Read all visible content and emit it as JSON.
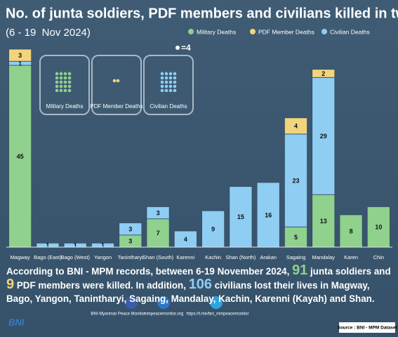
{
  "header": {
    "title": "No. of junta soldiers, PDF members and civilians killed in two weeks",
    "subtitle": "(6 - 19  Nov 2024)"
  },
  "chart_data": {
    "type": "stacked-bar",
    "categories": [
      "Magway",
      "Bago (East)",
      "Bago (West)",
      "Yangon",
      "Tanintharyi",
      "Shan (South)",
      "Karenni",
      "Kachin",
      "Shan (North)",
      "Arakan",
      "Sagaing",
      "Mandalay",
      "Karen",
      "Chin"
    ],
    "series": [
      {
        "name": "Military Deaths",
        "color": "#8fd18d",
        "values": [
          45,
          0,
          0,
          0,
          3,
          7,
          0,
          0,
          0,
          0,
          5,
          13,
          8,
          10
        ]
      },
      {
        "name": "PDF Member Deaths",
        "color": "#f2d47c",
        "values": [
          3,
          0,
          0,
          0,
          0,
          0,
          0,
          0,
          0,
          0,
          4,
          2,
          0,
          0
        ]
      },
      {
        "name": "Civilian Deaths",
        "color": "#8fcdf2",
        "values": [
          1,
          1,
          1,
          1,
          3,
          3,
          4,
          9,
          15,
          16,
          23,
          29,
          0,
          0
        ]
      }
    ]
  },
  "icons": {
    "key": "=4",
    "boxes": [
      "Military Deaths",
      "PDF Member Deaths",
      "Civilian Deaths"
    ]
  },
  "summary": {
    "parts": [
      "According to BNI - MPM records, between 6-19 November 2024,",
      "91",
      "junta soldiers and",
      "9",
      "PDF members were killed. In addition,",
      "106",
      "civilians lost their lives in Magway, Bago, Yangon, Tanintharyi, Sagaing, Mandalay, Kachin, Karenni (Kayah) and Shan."
    ]
  },
  "footer": {
    "org": "BNI-Myanmar Peace Monitor",
    "website": "mmpeacemonitor.org",
    "telegram": "https://t.me/bni_mmpeacemonitor",
    "source": "Source : BNI - MPM Dataset"
  }
}
